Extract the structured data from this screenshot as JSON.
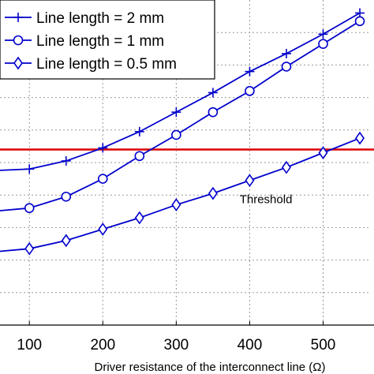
{
  "chart_data": {
    "type": "line",
    "title": "",
    "xlabel": "Driver resistance of the interconnect line (Ω)",
    "ylabel": "",
    "xlim": [
      60,
      565
    ],
    "ylim": [
      0,
      10
    ],
    "x_ticks": [
      100,
      200,
      300,
      400,
      500
    ],
    "grid": true,
    "legend_position": "top-left",
    "series": [
      {
        "name": "Line length = 2 mm",
        "marker": "plus",
        "color": "#0000cc",
        "x": [
          50,
          100,
          150,
          200,
          250,
          300,
          350,
          400,
          450,
          500,
          550
        ],
        "y": [
          4.75,
          4.8,
          5.05,
          5.45,
          5.95,
          6.55,
          7.15,
          7.8,
          8.35,
          8.95,
          9.6
        ]
      },
      {
        "name": "Line length = 1 mm",
        "marker": "circle",
        "color": "#0000cc",
        "x": [
          50,
          100,
          150,
          200,
          250,
          300,
          350,
          400,
          450,
          500,
          550
        ],
        "y": [
          3.5,
          3.6,
          3.95,
          4.5,
          5.2,
          5.85,
          6.55,
          7.2,
          7.95,
          8.65,
          9.35
        ]
      },
      {
        "name": "Line length = 0.5 mm",
        "marker": "diamond",
        "color": "#0000cc",
        "x": [
          50,
          100,
          150,
          200,
          250,
          300,
          350,
          400,
          450,
          500,
          550
        ],
        "y": [
          2.25,
          2.35,
          2.6,
          2.95,
          3.3,
          3.7,
          4.05,
          4.45,
          4.85,
          5.3,
          5.75
        ]
      }
    ],
    "threshold": {
      "y": 5.4,
      "color": "#dd0000"
    },
    "annotations": [
      {
        "text": "Threshold",
        "x": 458,
        "y": 3.75
      }
    ]
  }
}
